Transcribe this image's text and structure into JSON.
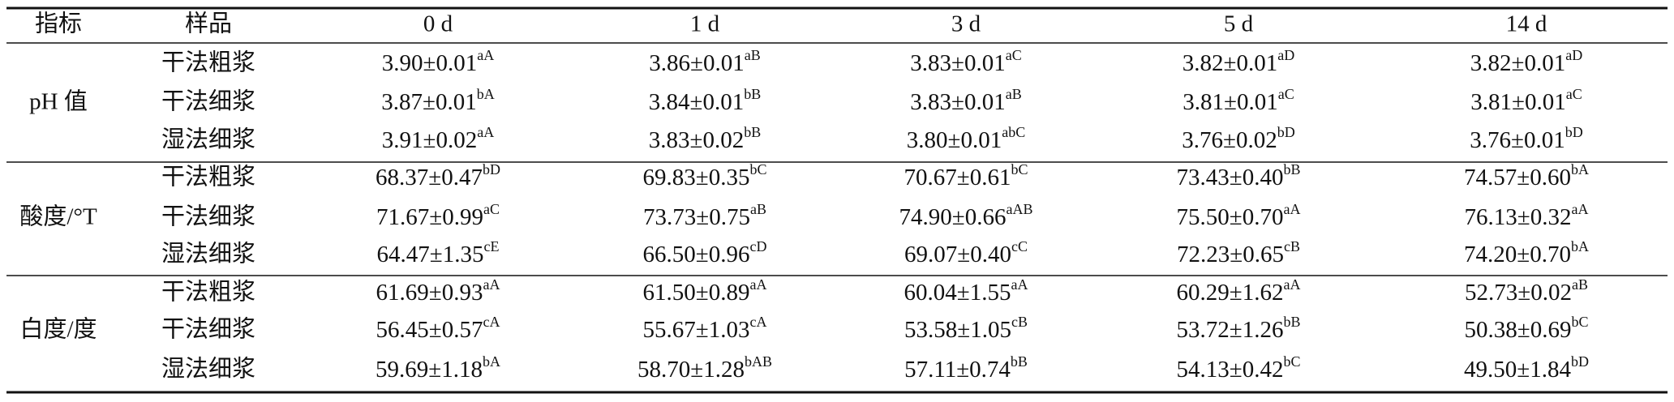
{
  "header": [
    "指标",
    "样品",
    "0 d",
    "1 d",
    "3 d",
    "5 d",
    "14 d"
  ],
  "groups": [
    {
      "indicator": "pH 值",
      "rows": [
        {
          "sample": "干法粗浆",
          "cells": [
            {
              "value": "3.90±0.01",
              "sup": "aA"
            },
            {
              "value": "3.86±0.01",
              "sup": "aB"
            },
            {
              "value": "3.83±0.01",
              "sup": "aC"
            },
            {
              "value": "3.82±0.01",
              "sup": "aD"
            },
            {
              "value": "3.82±0.01",
              "sup": "aD"
            }
          ]
        },
        {
          "sample": "干法细浆",
          "cells": [
            {
              "value": "3.87±0.01",
              "sup": "bA"
            },
            {
              "value": "3.84±0.01",
              "sup": "bB"
            },
            {
              "value": "3.83±0.01",
              "sup": "aB"
            },
            {
              "value": "3.81±0.01",
              "sup": "aC"
            },
            {
              "value": "3.81±0.01",
              "sup": "aC"
            }
          ]
        },
        {
          "sample": "湿法细浆",
          "cells": [
            {
              "value": "3.91±0.02",
              "sup": "aA"
            },
            {
              "value": "3.83±0.02",
              "sup": "bB"
            },
            {
              "value": "3.80±0.01",
              "sup": "abC"
            },
            {
              "value": "3.76±0.02",
              "sup": "bD"
            },
            {
              "value": "3.76±0.01",
              "sup": "bD"
            }
          ]
        }
      ]
    },
    {
      "indicator": "酸度/°T",
      "rows": [
        {
          "sample": "干法粗浆",
          "cells": [
            {
              "value": "68.37±0.47",
              "sup": "bD"
            },
            {
              "value": "69.83±0.35",
              "sup": "bC"
            },
            {
              "value": "70.67±0.61",
              "sup": "bC"
            },
            {
              "value": "73.43±0.40",
              "sup": "bB"
            },
            {
              "value": "74.57±0.60",
              "sup": "bA"
            }
          ]
        },
        {
          "sample": "干法细浆",
          "cells": [
            {
              "value": "71.67±0.99",
              "sup": "aC"
            },
            {
              "value": "73.73±0.75",
              "sup": "aB"
            },
            {
              "value": "74.90±0.66",
              "sup": "aAB"
            },
            {
              "value": "75.50±0.70",
              "sup": "aA"
            },
            {
              "value": "76.13±0.32",
              "sup": "aA"
            }
          ]
        },
        {
          "sample": "湿法细浆",
          "cells": [
            {
              "value": "64.47±1.35",
              "sup": "cE"
            },
            {
              "value": "66.50±0.96",
              "sup": "cD"
            },
            {
              "value": "69.07±0.40",
              "sup": "cC"
            },
            {
              "value": "72.23±0.65",
              "sup": "cB"
            },
            {
              "value": "74.20±0.70",
              "sup": "bA"
            }
          ]
        }
      ]
    },
    {
      "indicator": "白度/度",
      "rows": [
        {
          "sample": "干法粗浆",
          "cells": [
            {
              "value": "61.69±0.93",
              "sup": "aA"
            },
            {
              "value": "61.50±0.89",
              "sup": "aA"
            },
            {
              "value": "60.04±1.55",
              "sup": "aA"
            },
            {
              "value": "60.29±1.62",
              "sup": "aA"
            },
            {
              "value": "52.73±0.02",
              "sup": "aB"
            }
          ]
        },
        {
          "sample": "干法细浆",
          "cells": [
            {
              "value": "56.45±0.57",
              "sup": "cA"
            },
            {
              "value": "55.67±1.03",
              "sup": "cA"
            },
            {
              "value": "53.58±1.05",
              "sup": "cB"
            },
            {
              "value": "53.72±1.26",
              "sup": "bB"
            },
            {
              "value": "50.38±0.69",
              "sup": "bC"
            }
          ]
        },
        {
          "sample": "湿法细浆",
          "cells": [
            {
              "value": "59.69±1.18",
              "sup": "bA"
            },
            {
              "value": "58.70±1.28",
              "sup": "bAB"
            },
            {
              "value": "57.11±0.74",
              "sup": "bB"
            },
            {
              "value": "54.13±0.42",
              "sup": "bC"
            },
            {
              "value": "49.50±1.84",
              "sup": "bD"
            }
          ]
        }
      ]
    }
  ]
}
